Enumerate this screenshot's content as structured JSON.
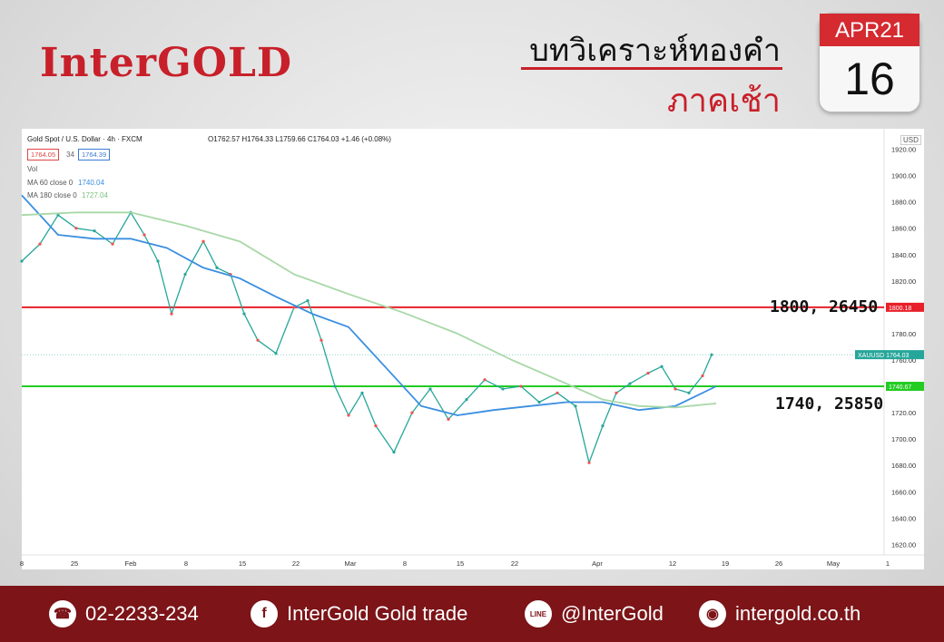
{
  "header": {
    "logo": "InterGOLD",
    "title": "บทวิเคราะห์ทองคำ",
    "subtitle": "ภาคเช้า",
    "calendar": {
      "month": "APR21",
      "day": "16"
    }
  },
  "chart_header": {
    "symbol": "Gold Spot / U.S. Dollar · 4h · FXCM",
    "ohlc": "O1762.57 H1764.33 L1759.66 C1764.03 +1.46 (+0.08%)",
    "bid": "1764.05",
    "spread": "34",
    "ask": "1764.39",
    "vol_label": "Vol",
    "ma60_label": "MA 60 close 0",
    "ma60_value": "1740.04",
    "ma180_label": "MA 180 close 0",
    "ma180_value": "1727.04",
    "currency": "USD"
  },
  "levels": {
    "resistance": {
      "label": "1800, 26450",
      "price": 1800,
      "tag": "1800.18",
      "color": "#e8202a"
    },
    "support": {
      "label": "1740, 25850",
      "price": 1740,
      "tag": "1740.67",
      "color": "#22cc22"
    },
    "current": {
      "tag": "XAUUSD  1764.03",
      "price": 1764.03
    }
  },
  "chart_data": {
    "type": "line",
    "title": "Gold Spot / U.S. Dollar · 4h · FXCM",
    "xlabel": "",
    "ylabel": "",
    "ylim": [
      1612,
      1930
    ],
    "y_ticks": [
      1620,
      1640,
      1660,
      1680,
      1700,
      1720,
      1740,
      1760,
      1780,
      1820,
      1840,
      1860,
      1880,
      1900,
      1920
    ],
    "x_tick_labels": [
      "8",
      "25",
      "Feb",
      "8",
      "15",
      "22",
      "Mar",
      "8",
      "15",
      "22",
      "Apr",
      "12",
      "19",
      "26",
      "May",
      "1"
    ],
    "x_tick_positions": [
      0,
      58,
      120,
      181,
      243,
      302,
      362,
      422,
      483,
      543,
      634,
      717,
      775,
      834,
      894,
      954
    ],
    "series": [
      {
        "name": "XAUUSD",
        "color": "#26a69a",
        "x": [
          0,
          20,
          40,
          60,
          80,
          100,
          120,
          135,
          150,
          165,
          180,
          200,
          215,
          230,
          245,
          260,
          280,
          300,
          315,
          330,
          345,
          360,
          375,
          390,
          410,
          430,
          450,
          470,
          490,
          510,
          530,
          550,
          570,
          590,
          610,
          625,
          640,
          655,
          670,
          690,
          705,
          720,
          735,
          750,
          760
        ],
        "values": [
          1835,
          1848,
          1870,
          1860,
          1858,
          1848,
          1872,
          1855,
          1835,
          1795,
          1825,
          1850,
          1830,
          1825,
          1795,
          1775,
          1765,
          1800,
          1805,
          1775,
          1740,
          1718,
          1735,
          1710,
          1690,
          1720,
          1738,
          1715,
          1730,
          1745,
          1738,
          1740,
          1728,
          1735,
          1725,
          1682,
          1710,
          1735,
          1742,
          1750,
          1755,
          1738,
          1735,
          1748,
          1764
        ]
      },
      {
        "name": "MA 60 close 0",
        "color": "#3a8fe0",
        "x": [
          0,
          40,
          80,
          120,
          160,
          200,
          240,
          280,
          320,
          360,
          400,
          440,
          480,
          520,
          560,
          600,
          640,
          680,
          720,
          765
        ],
        "values": [
          1885,
          1855,
          1852,
          1852,
          1845,
          1830,
          1822,
          1808,
          1795,
          1785,
          1755,
          1725,
          1718,
          1722,
          1725,
          1728,
          1728,
          1722,
          1725,
          1740
        ]
      },
      {
        "name": "MA 180 close 0",
        "color": "#a8d8a8",
        "x": [
          0,
          60,
          120,
          180,
          240,
          300,
          360,
          420,
          480,
          540,
          600,
          640,
          680,
          720,
          765
        ],
        "values": [
          1870,
          1872,
          1872,
          1862,
          1850,
          1825,
          1810,
          1796,
          1780,
          1760,
          1742,
          1730,
          1725,
          1724,
          1727
        ]
      }
    ]
  },
  "footer": {
    "phone": "02-2233-234",
    "facebook": "InterGold Gold trade",
    "line": "@InterGold",
    "website": "intergold.co.th",
    "line_icon_text": "LINE"
  }
}
